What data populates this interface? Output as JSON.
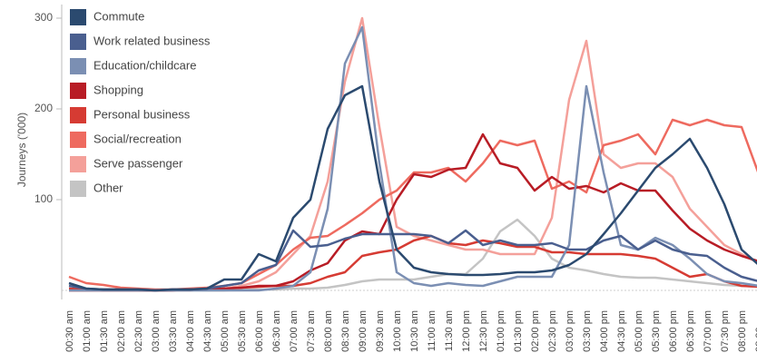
{
  "chart_data": {
    "type": "line",
    "y_label": "Journeys ('000)",
    "categories": [
      "00:30 am",
      "01:00 am",
      "01:30 am",
      "02:00 am",
      "02:30 am",
      "03:00 am",
      "03:30 am",
      "04:00 am",
      "04:30 am",
      "05:00 am",
      "05:30 am",
      "06:00 am",
      "06:30 am",
      "07:00 am",
      "07:30 am",
      "08:00 am",
      "08:30 am",
      "09:00 am",
      "09:30 am",
      "10:00 am",
      "10:30 am",
      "11:00 am",
      "11:30 am",
      "12:00 pm",
      "12:30 pm",
      "01:00 pm",
      "01:30 pm",
      "02:00 pm",
      "02:30 pm",
      "03:00 pm",
      "03:30 pm",
      "04:00 pm",
      "04:30 pm",
      "05:00 pm",
      "05:30 pm",
      "06:00 pm",
      "06:30 pm",
      "07:00 pm",
      "07:30 pm",
      "08:00 pm",
      "08:30 pm"
    ],
    "series": [
      {
        "name": "Commute",
        "color": "#2b4a6f",
        "values": [
          8,
          2,
          1,
          1,
          1,
          0,
          1,
          1,
          2,
          12,
          12,
          40,
          32,
          80,
          100,
          178,
          215,
          225,
          120,
          45,
          25,
          20,
          18,
          17,
          17,
          18,
          20,
          20,
          22,
          28,
          40,
          62,
          85,
          110,
          135,
          150,
          167,
          135,
          95,
          45,
          28
        ]
      },
      {
        "name": "Work related business",
        "color": "#4a5f8f",
        "values": [
          5,
          2,
          1,
          1,
          1,
          0,
          1,
          1,
          2,
          5,
          8,
          22,
          28,
          66,
          48,
          50,
          57,
          62,
          62,
          62,
          62,
          60,
          52,
          66,
          50,
          55,
          50,
          50,
          52,
          45,
          45,
          55,
          60,
          45,
          55,
          45,
          40,
          38,
          25,
          15,
          10
        ]
      },
      {
        "name": "Education/childcare",
        "color": "#7b8fb3",
        "values": [
          0,
          0,
          0,
          0,
          0,
          0,
          0,
          0,
          0,
          0,
          0,
          0,
          2,
          5,
          20,
          90,
          250,
          290,
          140,
          20,
          8,
          5,
          8,
          6,
          5,
          10,
          15,
          15,
          15,
          50,
          225,
          130,
          50,
          45,
          58,
          50,
          35,
          18,
          10,
          8,
          5
        ]
      },
      {
        "name": "Shopping",
        "color": "#b81c25",
        "values": [
          0,
          0,
          0,
          0,
          0,
          0,
          0,
          1,
          1,
          2,
          3,
          5,
          5,
          10,
          22,
          30,
          55,
          65,
          62,
          100,
          128,
          125,
          133,
          135,
          172,
          140,
          135,
          110,
          125,
          112,
          115,
          108,
          118,
          110,
          110,
          88,
          68,
          55,
          45,
          38,
          32
        ]
      },
      {
        "name": "Personal business",
        "color": "#d63b33",
        "values": [
          2,
          1,
          1,
          1,
          1,
          0,
          1,
          1,
          1,
          2,
          3,
          4,
          5,
          5,
          8,
          15,
          20,
          38,
          42,
          45,
          55,
          60,
          52,
          50,
          55,
          52,
          48,
          48,
          42,
          42,
          40,
          40,
          40,
          38,
          35,
          25,
          15,
          18,
          10,
          5,
          4
        ]
      },
      {
        "name": "Social/recreation",
        "color": "#ee6a5f",
        "values": [
          15,
          8,
          6,
          3,
          2,
          1,
          1,
          2,
          3,
          5,
          8,
          18,
          28,
          45,
          58,
          60,
          72,
          85,
          100,
          110,
          130,
          130,
          135,
          120,
          140,
          165,
          160,
          165,
          112,
          120,
          108,
          160,
          165,
          172,
          150,
          188,
          182,
          188,
          182,
          180,
          128
        ]
      },
      {
        "name": "Serve passenger",
        "color": "#f4a09a",
        "values": [
          0,
          0,
          0,
          0,
          0,
          0,
          0,
          0,
          1,
          2,
          5,
          10,
          20,
          40,
          60,
          120,
          230,
          300,
          180,
          70,
          60,
          55,
          50,
          45,
          45,
          40,
          40,
          40,
          80,
          210,
          275,
          150,
          135,
          140,
          140,
          125,
          90,
          70,
          50,
          40,
          30
        ]
      },
      {
        "name": "Other",
        "color": "#c4c4c4",
        "values": [
          0,
          0,
          0,
          0,
          0,
          0,
          0,
          0,
          0,
          0,
          1,
          1,
          1,
          2,
          2,
          3,
          6,
          10,
          12,
          12,
          12,
          15,
          18,
          18,
          35,
          65,
          78,
          60,
          35,
          25,
          22,
          18,
          15,
          14,
          14,
          12,
          10,
          8,
          6,
          5,
          4
        ]
      }
    ],
    "ylim": [
      0,
      320
    ],
    "yticks": [
      100,
      200,
      300
    ],
    "legend": "top-left"
  }
}
